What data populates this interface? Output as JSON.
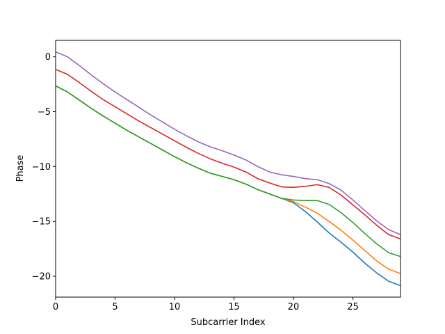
{
  "chart_data": {
    "type": "line",
    "title": "",
    "xlabel": "Subcarrier Index",
    "ylabel": "Phase",
    "xlim": [
      0,
      29
    ],
    "ylim": [
      -21.9,
      1.5
    ],
    "xticks": [
      0,
      5,
      10,
      15,
      20,
      25
    ],
    "yticks": [
      0,
      -5,
      -10,
      -15,
      -20
    ],
    "grid": false,
    "legend": "none",
    "x": [
      0,
      1,
      2,
      3,
      4,
      5,
      6,
      7,
      8,
      9,
      10,
      11,
      12,
      13,
      14,
      15,
      16,
      17,
      18,
      19,
      20,
      21,
      22,
      23,
      24,
      25,
      26,
      27,
      28,
      29
    ],
    "series": [
      {
        "color": "#1f77b4",
        "values": [
          -2.65,
          -3.2,
          -3.95,
          -4.7,
          -5.4,
          -6.05,
          -6.7,
          -7.3,
          -7.9,
          -8.5,
          -9.1,
          -9.65,
          -10.15,
          -10.6,
          -10.9,
          -11.2,
          -11.6,
          -12.1,
          -12.5,
          -12.9,
          -13.3,
          -14.1,
          -15.05,
          -16.05,
          -16.9,
          -17.8,
          -18.8,
          -19.7,
          -20.45,
          -20.85
        ]
      },
      {
        "color": "#ff7f0e",
        "values": [
          -2.65,
          -3.2,
          -3.95,
          -4.7,
          -5.4,
          -6.05,
          -6.7,
          -7.3,
          -7.9,
          -8.5,
          -9.1,
          -9.65,
          -10.15,
          -10.6,
          -10.9,
          -11.2,
          -11.6,
          -12.1,
          -12.5,
          -12.9,
          -13.2,
          -13.7,
          -14.25,
          -15.0,
          -15.8,
          -16.7,
          -17.65,
          -18.6,
          -19.35,
          -19.75
        ]
      },
      {
        "color": "#2ca02c",
        "values": [
          -2.65,
          -3.2,
          -3.95,
          -4.7,
          -5.4,
          -6.05,
          -6.7,
          -7.3,
          -7.9,
          -8.5,
          -9.1,
          -9.65,
          -10.15,
          -10.6,
          -10.9,
          -11.2,
          -11.6,
          -12.1,
          -12.5,
          -12.9,
          -13.05,
          -13.1,
          -13.1,
          -13.45,
          -14.2,
          -15.1,
          -16.1,
          -17.05,
          -17.85,
          -18.2
        ]
      },
      {
        "color": "#d62728",
        "values": [
          -1.15,
          -1.6,
          -2.35,
          -3.15,
          -3.9,
          -4.55,
          -5.2,
          -5.85,
          -6.45,
          -7.05,
          -7.65,
          -8.25,
          -8.8,
          -9.3,
          -9.7,
          -10.05,
          -10.5,
          -11.1,
          -11.5,
          -11.85,
          -11.9,
          -11.8,
          -11.65,
          -11.9,
          -12.6,
          -13.5,
          -14.4,
          -15.35,
          -16.2,
          -16.6
        ]
      },
      {
        "color": "#9467bd",
        "values": [
          0.45,
          0.0,
          -0.8,
          -1.65,
          -2.45,
          -3.2,
          -3.9,
          -4.6,
          -5.3,
          -5.95,
          -6.6,
          -7.2,
          -7.75,
          -8.2,
          -8.55,
          -8.95,
          -9.4,
          -10.0,
          -10.5,
          -10.75,
          -10.9,
          -11.1,
          -11.2,
          -11.55,
          -12.15,
          -13.05,
          -14.0,
          -14.95,
          -15.75,
          -16.2
        ]
      }
    ]
  }
}
